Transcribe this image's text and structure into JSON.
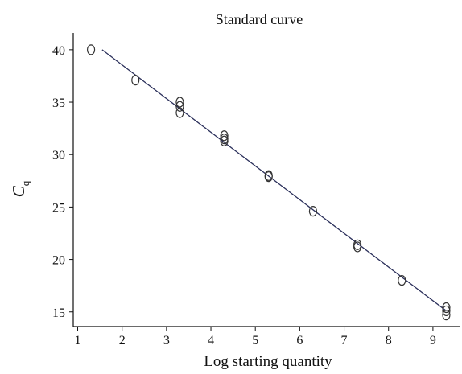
{
  "chart_data": {
    "type": "scatter",
    "title": "Standard curve",
    "xlabel": "Log starting quantity",
    "ylabel": {
      "main": "C",
      "subscript": "q"
    },
    "xlim": [
      0.9,
      9.6
    ],
    "ylim": [
      13.6,
      41.6
    ],
    "xticks": [
      1,
      2,
      3,
      4,
      5,
      6,
      7,
      8,
      9
    ],
    "yticks": [
      15,
      20,
      25,
      30,
      35,
      40
    ],
    "grid": false,
    "legend": "none",
    "points": [
      {
        "x": 1.3,
        "y": 40.0
      },
      {
        "x": 2.3,
        "y": 37.1
      },
      {
        "x": 3.3,
        "y": 35.0
      },
      {
        "x": 3.3,
        "y": 34.6
      },
      {
        "x": 3.3,
        "y": 34.0
      },
      {
        "x": 4.3,
        "y": 31.8
      },
      {
        "x": 4.3,
        "y": 31.5
      },
      {
        "x": 4.3,
        "y": 31.3
      },
      {
        "x": 5.3,
        "y": 28.0
      },
      {
        "x": 5.3,
        "y": 27.9
      },
      {
        "x": 6.3,
        "y": 24.6
      },
      {
        "x": 7.3,
        "y": 21.4
      },
      {
        "x": 7.3,
        "y": 21.2
      },
      {
        "x": 8.3,
        "y": 18.0
      },
      {
        "x": 9.3,
        "y": 15.4
      },
      {
        "x": 9.3,
        "y": 15.1
      },
      {
        "x": 9.3,
        "y": 14.7
      }
    ],
    "fit_line": {
      "x": [
        1.55,
        9.3
      ],
      "y": [
        40.0,
        15.1
      ]
    },
    "colors": {
      "axis": "#111111",
      "marker": "#333333",
      "line": "#2a2f5a"
    }
  }
}
